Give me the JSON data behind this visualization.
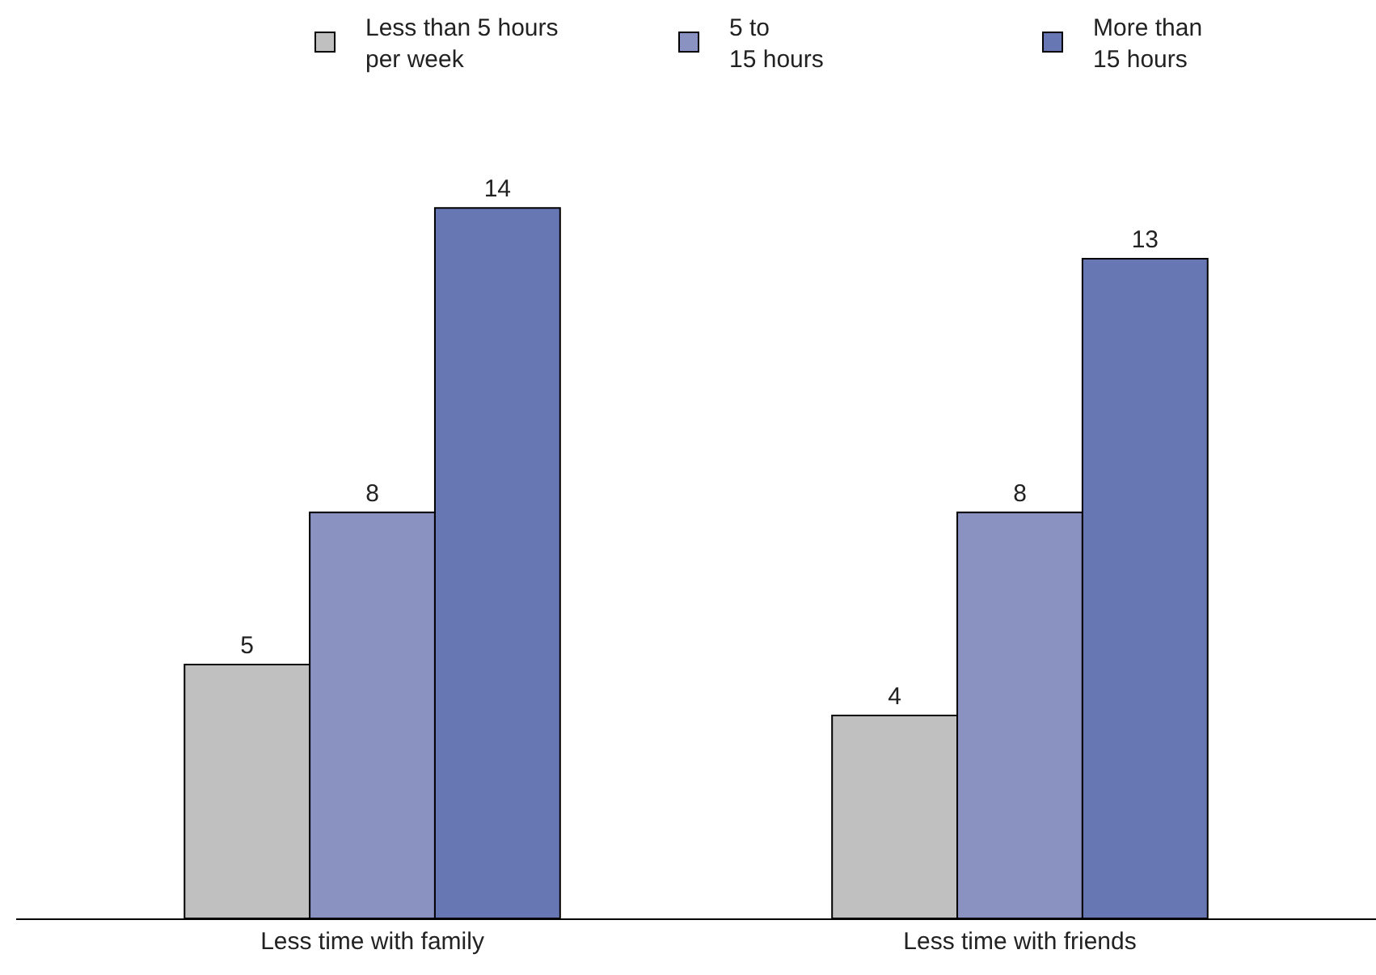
{
  "chart_data": {
    "type": "bar",
    "categories": [
      "Less time with family",
      "Less time with friends"
    ],
    "series": [
      {
        "name": "Less than 5 hours\nper week",
        "color": "#c0c0c0",
        "values": [
          5,
          4
        ]
      },
      {
        "name": "5 to\n15 hours",
        "color": "#8a92c2",
        "values": [
          8,
          8
        ]
      },
      {
        "name": "More than\n15 hours",
        "color": "#6677b3",
        "values": [
          14,
          13
        ]
      }
    ],
    "data_labels": true,
    "legend": "top right"
  }
}
